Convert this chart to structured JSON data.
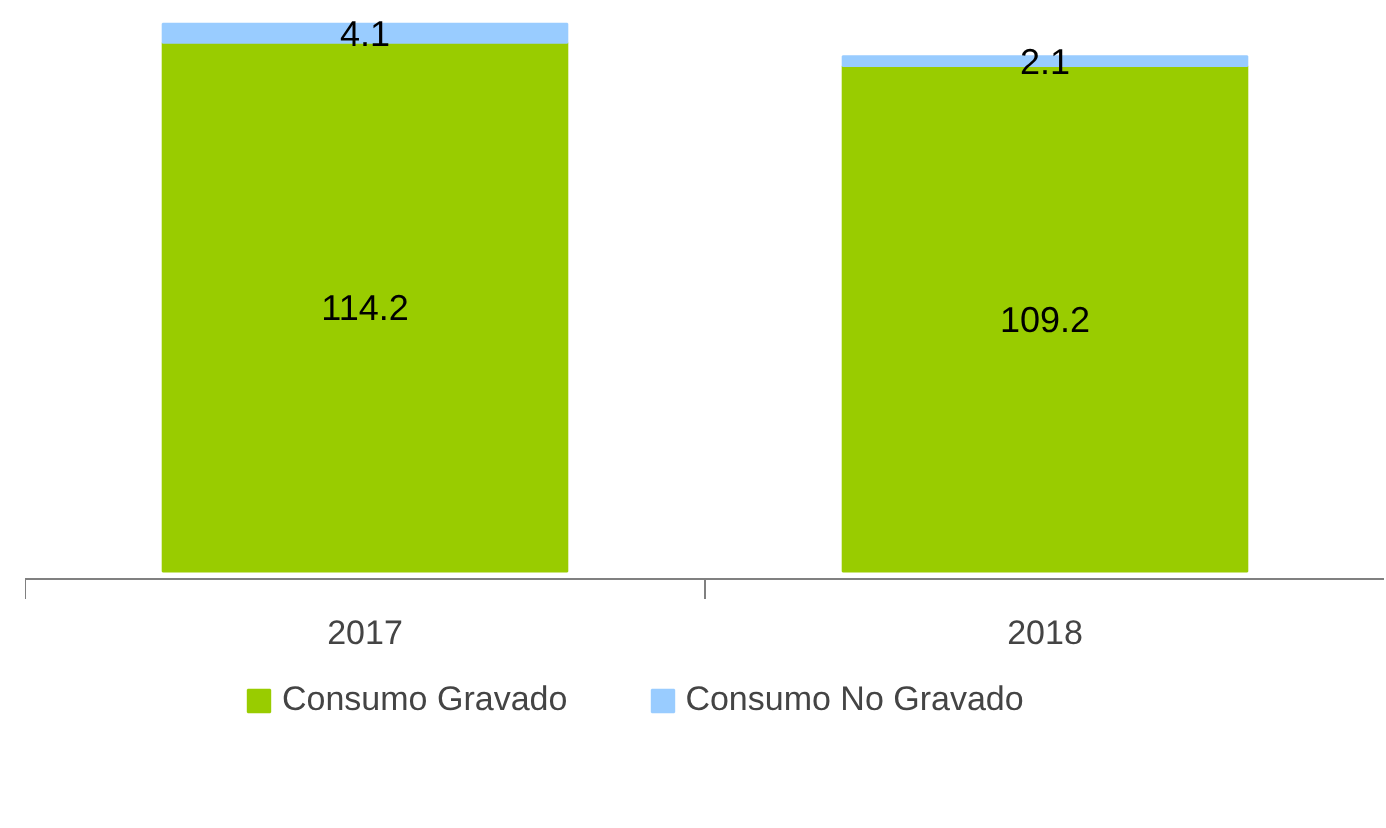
{
  "chart_data": {
    "type": "bar",
    "stacked": true,
    "categories": [
      "2017",
      "2018"
    ],
    "series": [
      {
        "name": "Consumo Gravado",
        "color": "#99cc00",
        "values": [
          114.2,
          109.2
        ]
      },
      {
        "name": "Consumo No Gravado",
        "color": "#99ccff",
        "values": [
          4.1,
          2.1
        ]
      }
    ],
    "data_labels": true,
    "legend": "bottom",
    "grid": false
  }
}
